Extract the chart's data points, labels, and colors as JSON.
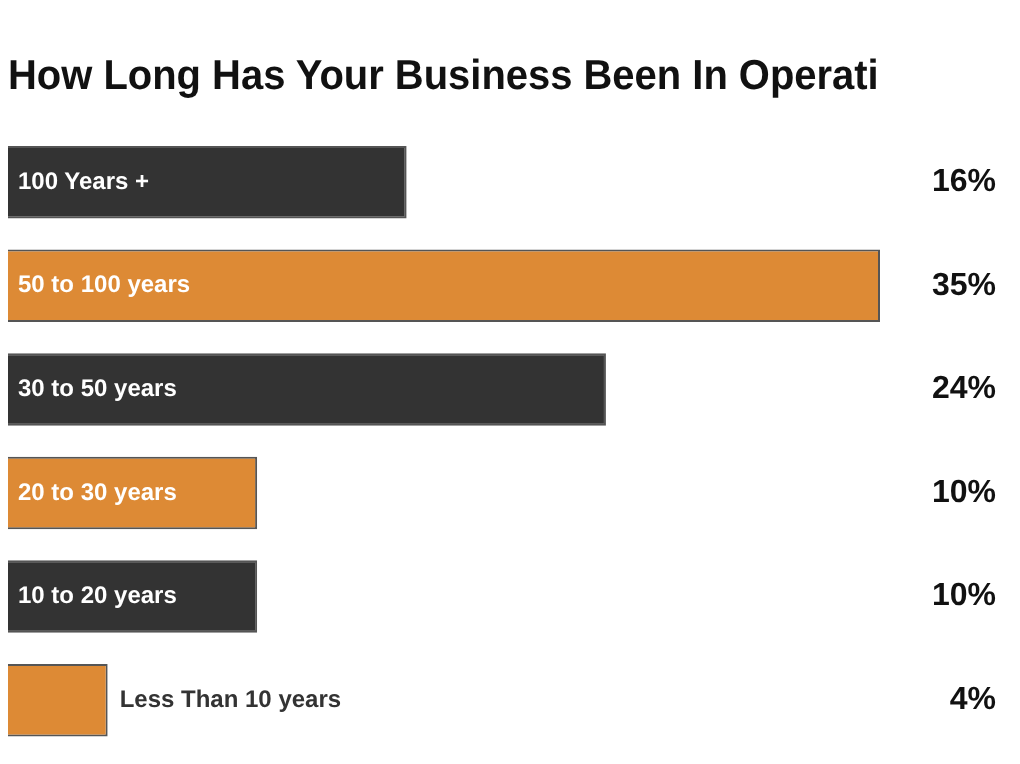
{
  "chart_data": {
    "type": "bar",
    "orientation": "horizontal",
    "title": "How Long Has Your Business Been In Operati",
    "categories": [
      "100 Years +",
      "50 to 100 years",
      "30 to 50 years",
      "20 to 30 years",
      "10 to 20 years",
      "Less Than 10 years"
    ],
    "values": [
      16,
      35,
      24,
      10,
      10,
      4
    ],
    "colors": [
      "#333333",
      "#dd8a35",
      "#333333",
      "#dd8a35",
      "#333333",
      "#dd8a35"
    ],
    "value_labels": [
      "16%",
      "35%",
      "24%",
      "10%",
      "10%",
      "4%"
    ],
    "legend": false
  }
}
